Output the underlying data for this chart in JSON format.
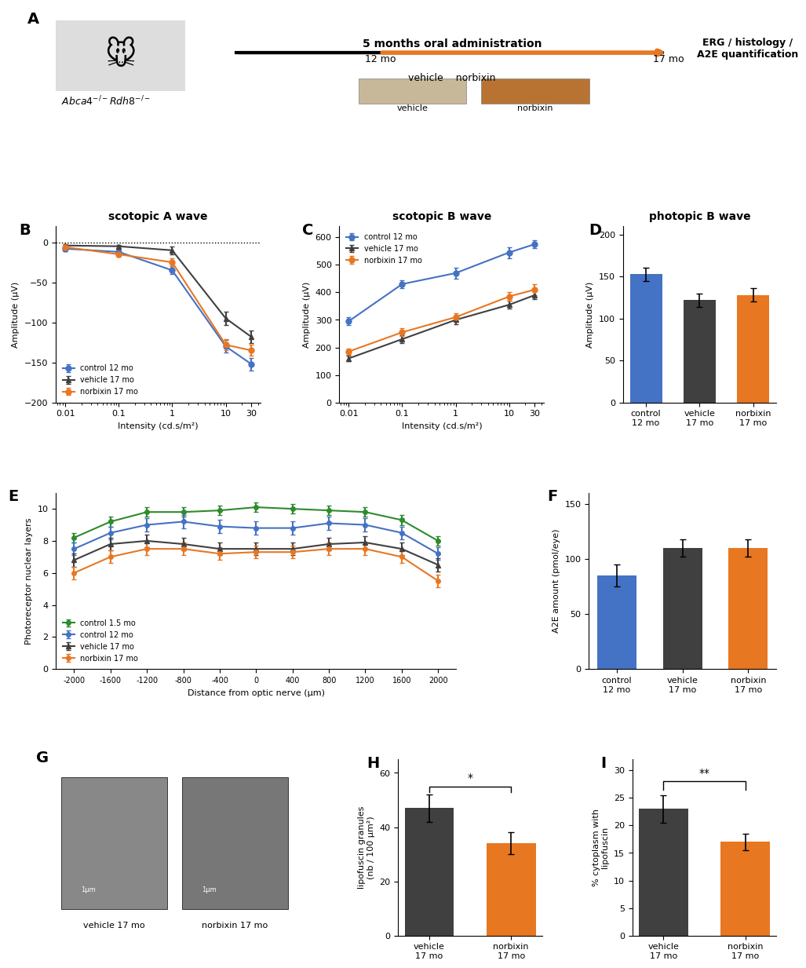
{
  "colors": {
    "blue": "#4472C4",
    "dark_gray": "#404040",
    "orange": "#E87722",
    "green": "#2E8B2E",
    "white": "#FFFFFF"
  },
  "panel_A": {
    "title_mouse": "Abca4⁻/Rdh8⁻",
    "timeline_label": "5 months oral administration",
    "start_label": "12 mo",
    "end_label": "17 mo",
    "outcome_label": "ERG / histology /\nA2E quantification",
    "food_labels": [
      "vehicle",
      "norbixin"
    ]
  },
  "panel_B": {
    "title": "scotopic A wave",
    "xlabel": "Intensity (cd.s/m²)",
    "ylabel": "Amplitude (μV)",
    "x_ticks": [
      0.01,
      0.1,
      1,
      10,
      30
    ],
    "ylim": [
      -200,
      20
    ],
    "yticks": [
      -200,
      -150,
      -100,
      -50,
      0
    ],
    "control_12mo": [
      -8,
      -12,
      -35,
      -130,
      -152
    ],
    "vehicle_17mo": [
      -4,
      -5,
      -10,
      -95,
      -118
    ],
    "norbixin_17mo": [
      -6,
      -15,
      -25,
      -128,
      -135
    ],
    "control_12mo_err": [
      3,
      3,
      5,
      8,
      8
    ],
    "vehicle_17mo_err": [
      2,
      2,
      5,
      8,
      8
    ],
    "norbixin_17mo_err": [
      3,
      3,
      5,
      7,
      7
    ],
    "legend": [
      "control 12 mo",
      "vehicle 17 mo",
      "norbixin 17 mo"
    ]
  },
  "panel_C": {
    "title": "scotopic B wave",
    "xlabel": "Intensity (cd.s/m²)",
    "ylabel": "Amplitude (μV)",
    "x_ticks": [
      0.01,
      0.1,
      1,
      10,
      30
    ],
    "ylim": [
      0,
      640
    ],
    "yticks": [
      0,
      100,
      200,
      300,
      400,
      500,
      600
    ],
    "control_12mo": [
      295,
      430,
      470,
      545,
      575
    ],
    "vehicle_17mo": [
      160,
      230,
      300,
      355,
      390
    ],
    "norbixin_17mo": [
      185,
      255,
      310,
      385,
      410
    ],
    "control_12mo_err": [
      15,
      15,
      20,
      20,
      15
    ],
    "vehicle_17mo_err": [
      10,
      15,
      15,
      15,
      15
    ],
    "norbixin_17mo_err": [
      12,
      15,
      15,
      15,
      20
    ],
    "legend": [
      "control 12 mo",
      "vehicle 17 mo",
      "norbixin 17 mo"
    ]
  },
  "panel_D": {
    "title": "photopic B wave",
    "ylabel": "Amplitude (μV)",
    "ylim": [
      0,
      210
    ],
    "yticks": [
      0,
      50,
      100,
      150,
      200
    ],
    "categories": [
      "control\n12 mo",
      "vehicle\n17 mo",
      "norbixin\n17 mo"
    ],
    "values": [
      153,
      122,
      128
    ],
    "errors": [
      8,
      8,
      8
    ],
    "bar_colors": [
      "#4472C4",
      "#404040",
      "#E87722"
    ]
  },
  "panel_E": {
    "title": "",
    "xlabel": "Distance from optic nerve (μm)",
    "ylabel": "Photoreceptor nuclear layers",
    "x_positions": [
      -2000,
      -1600,
      -1200,
      -800,
      -400,
      0,
      400,
      800,
      1200,
      1600,
      2000
    ],
    "ylim": [
      0,
      11
    ],
    "yticks": [
      0,
      2,
      4,
      6,
      8,
      10
    ],
    "control_15mo": [
      8.2,
      9.2,
      9.8,
      9.8,
      9.9,
      10.1,
      10.0,
      9.9,
      9.8,
      9.3,
      8.0
    ],
    "control_12mo": [
      7.5,
      8.5,
      9.0,
      9.2,
      8.9,
      8.8,
      8.8,
      9.1,
      9.0,
      8.5,
      7.2
    ],
    "vehicle_17mo": [
      6.8,
      7.8,
      8.0,
      7.8,
      7.5,
      7.5,
      7.5,
      7.8,
      7.9,
      7.5,
      6.5
    ],
    "norbixin_17mo": [
      6.0,
      7.0,
      7.5,
      7.5,
      7.2,
      7.3,
      7.3,
      7.5,
      7.5,
      7.0,
      5.5
    ],
    "control_15mo_err": [
      0.3,
      0.3,
      0.3,
      0.3,
      0.3,
      0.3,
      0.3,
      0.3,
      0.3,
      0.3,
      0.3
    ],
    "control_12mo_err": [
      0.4,
      0.4,
      0.4,
      0.4,
      0.4,
      0.4,
      0.4,
      0.4,
      0.4,
      0.4,
      0.4
    ],
    "vehicle_17mo_err": [
      0.4,
      0.4,
      0.4,
      0.4,
      0.4,
      0.4,
      0.4,
      0.4,
      0.4,
      0.4,
      0.4
    ],
    "norbixin_17mo_err": [
      0.4,
      0.4,
      0.4,
      0.4,
      0.4,
      0.4,
      0.4,
      0.4,
      0.4,
      0.4,
      0.4
    ],
    "legend": [
      "control 1.5 mo",
      "control 12 mo",
      "vehicle 17 mo",
      "norbixin 17 mo"
    ]
  },
  "panel_F": {
    "title": "",
    "ylabel": "A2E amount (pmol/eye)",
    "ylim": [
      0,
      160
    ],
    "yticks": [
      0,
      50,
      100,
      150
    ],
    "categories": [
      "control\n12 mo",
      "vehicle\n17 mo",
      "norbixin\n17 mo"
    ],
    "values": [
      85,
      110,
      110
    ],
    "errors": [
      10,
      8,
      8
    ],
    "bar_colors": [
      "#4472C4",
      "#404040",
      "#E87722"
    ]
  },
  "panel_H": {
    "ylabel": "lipofuscin granules\n(nb / 100 μm²)",
    "ylim": [
      0,
      65
    ],
    "yticks": [
      0,
      20,
      40,
      60
    ],
    "categories": [
      "vehicle\n17 mo",
      "norbixin\n17 mo"
    ],
    "values": [
      47,
      34
    ],
    "errors": [
      5,
      4
    ],
    "bar_colors": [
      "#404040",
      "#E87722"
    ],
    "sig_label": "*"
  },
  "panel_I": {
    "ylabel": "% cytoplasm with\nlipofuscin",
    "ylim": [
      0,
      32
    ],
    "yticks": [
      0,
      5,
      10,
      15,
      20,
      25,
      30
    ],
    "categories": [
      "vehicle\n17 mo",
      "norbixin\n17 mo"
    ],
    "values": [
      23,
      17
    ],
    "errors": [
      2.5,
      1.5
    ],
    "bar_colors": [
      "#404040",
      "#E87722"
    ],
    "sig_label": "**"
  }
}
